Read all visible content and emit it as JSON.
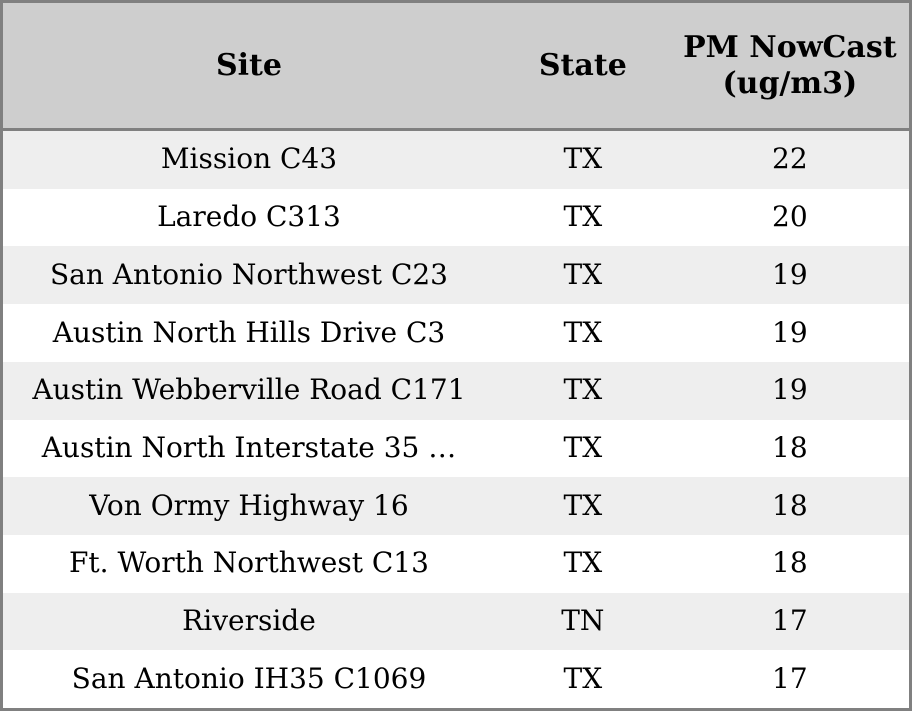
{
  "colors": {
    "header_bg": "#cecece",
    "border": "#808080",
    "row_alt_bg": "#eeeeee",
    "row_bg": "#ffffff",
    "text": "#000000"
  },
  "chart_data": {
    "type": "table",
    "title": "",
    "columns": [
      "Site",
      "State",
      "PM NowCast (ug/m3)"
    ],
    "rows": [
      [
        "Mission C43",
        "TX",
        22
      ],
      [
        "Laredo C313",
        "TX",
        20
      ],
      [
        "San Antonio Northwest C23",
        "TX",
        19
      ],
      [
        "Austin North Hills Drive C3",
        "TX",
        19
      ],
      [
        "Austin Webberville Road C171",
        "TX",
        19
      ],
      [
        "Austin North Interstate 35 …",
        "TX",
        18
      ],
      [
        "Von Ormy Highway 16",
        "TX",
        18
      ],
      [
        "Ft. Worth Northwest C13",
        "TX",
        18
      ],
      [
        "Riverside",
        "TN",
        17
      ],
      [
        "San Antonio IH35 C1069",
        "TX",
        17
      ]
    ],
    "layout_hints": {
      "zebra_striping": true,
      "header_wraps_to_lines": [
        "PM",
        "NowCast",
        "(ug/m3)"
      ],
      "column_alignment": [
        "center",
        "center",
        "center"
      ]
    }
  }
}
